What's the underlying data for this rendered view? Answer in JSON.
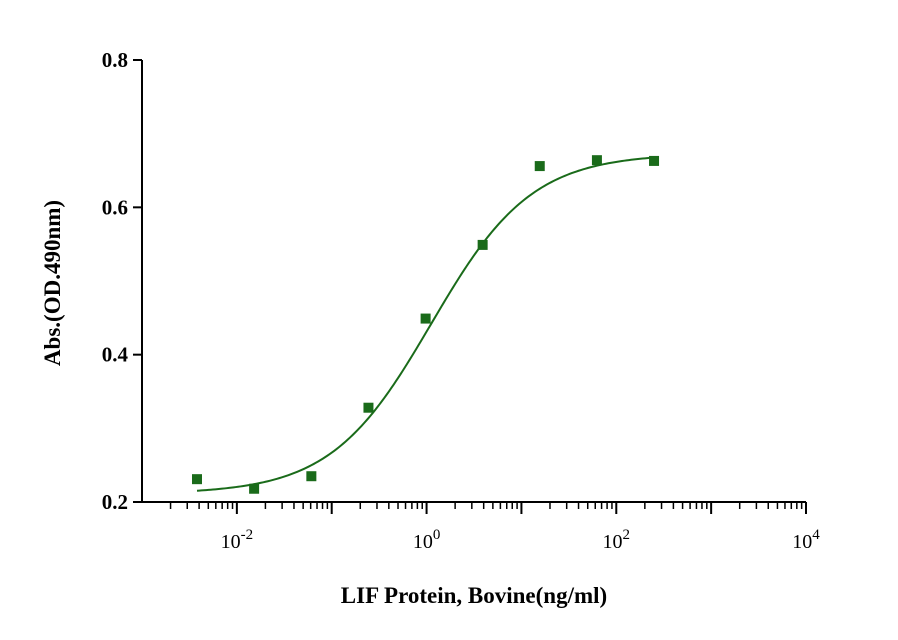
{
  "colors": {
    "series": "#1a6b1a",
    "axis": "#000000",
    "background": "#ffffff"
  },
  "chart_data": {
    "type": "scatter",
    "title": "",
    "xlabel": "LIF Protein, Bovine(ng/ml)",
    "ylabel": "Abs.(OD.490nm)",
    "xscale": "log",
    "xlim": [
      0.001,
      10000
    ],
    "ylim": [
      0.2,
      0.8
    ],
    "grid": false,
    "legend": "none",
    "y_ticks": [
      "0.2",
      "0.4",
      "0.6",
      "0.8"
    ],
    "x_ticks": [
      {
        "base": "10",
        "exp": "-2",
        "value": 0.01
      },
      {
        "base": "10",
        "exp": "0",
        "value": 1
      },
      {
        "base": "10",
        "exp": "2",
        "value": 100
      },
      {
        "base": "10",
        "exp": "4",
        "value": 10000
      }
    ],
    "series": [
      {
        "marker": "square",
        "x": [
          0.0038,
          0.0152,
          0.061,
          0.244,
          0.977,
          3.9,
          15.6,
          62.5,
          250
        ],
        "y": [
          0.231,
          0.218,
          0.235,
          0.328,
          0.449,
          0.549,
          0.656,
          0.664,
          0.663
        ]
      }
    ],
    "fit_curve": {
      "model": "4PL",
      "bottom": 0.211,
      "top": 0.673,
      "ec50": 1.12,
      "hill": 0.82,
      "x_range": [
        0.0038,
        250
      ]
    }
  }
}
